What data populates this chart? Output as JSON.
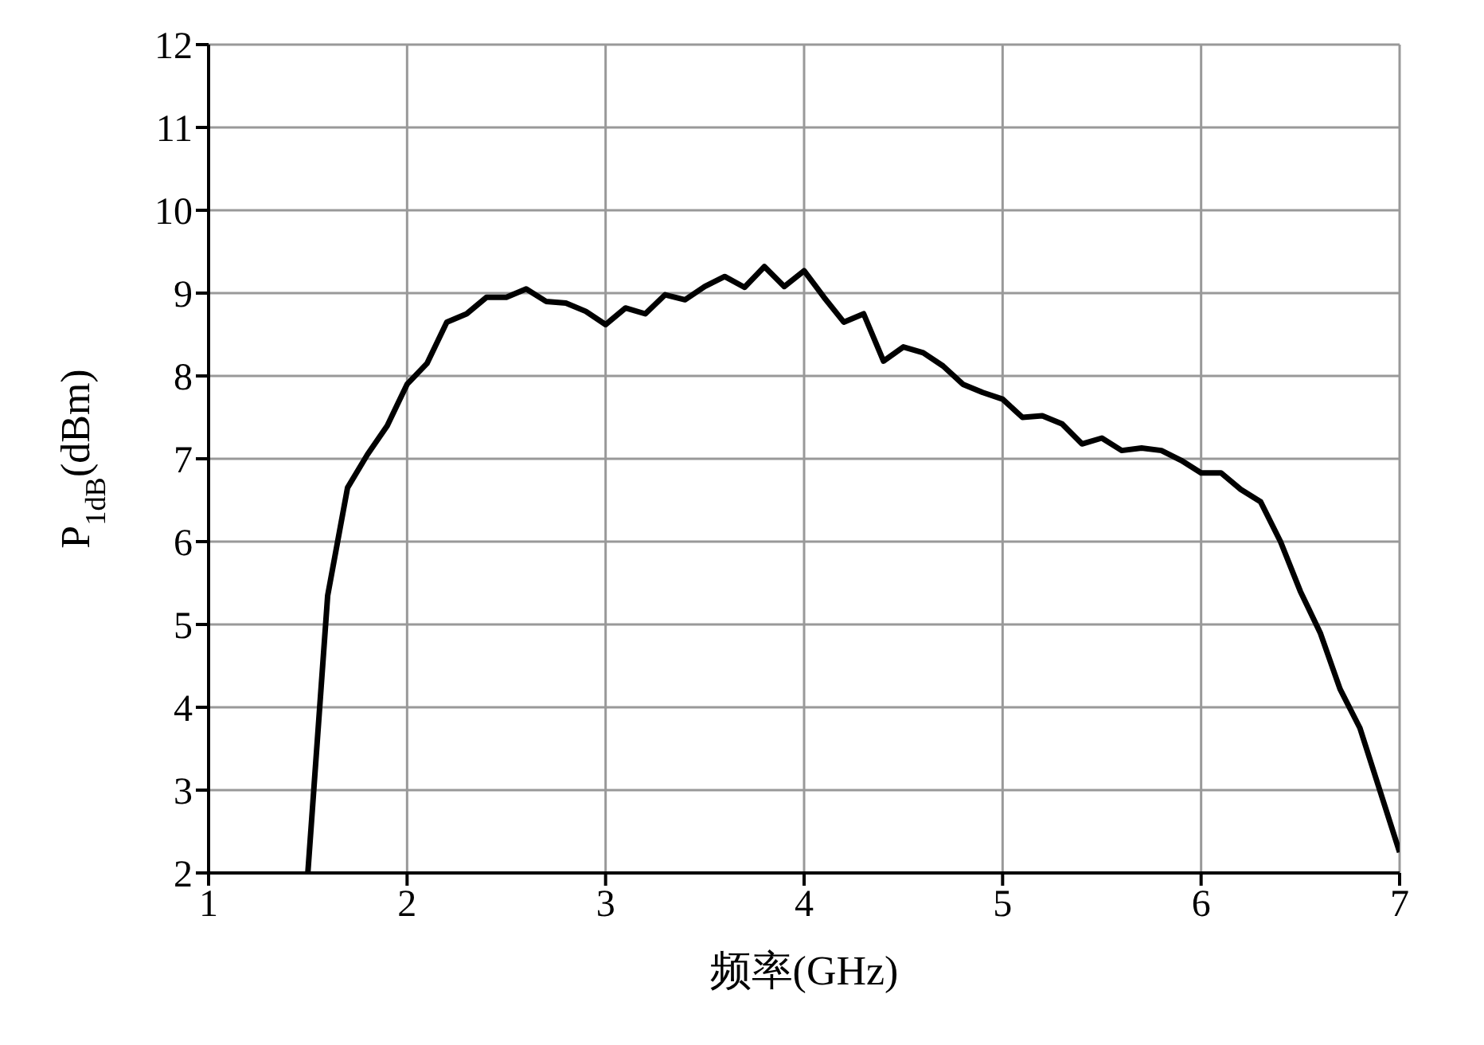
{
  "chart_data": {
    "type": "line",
    "xlabel": "频率(GHz)",
    "ylabel": "P$_{1dB}$(dBm)",
    "x": [
      1.5,
      1.6,
      1.7,
      1.8,
      1.9,
      2.0,
      2.1,
      2.2,
      2.3,
      2.4,
      2.5,
      2.6,
      2.7,
      2.8,
      2.9,
      3.0,
      3.1,
      3.2,
      3.3,
      3.4,
      3.5,
      3.6,
      3.7,
      3.8,
      3.9,
      4.0,
      4.1,
      4.2,
      4.3,
      4.4,
      4.5,
      4.6,
      4.7,
      4.8,
      4.9,
      5.0,
      5.1,
      5.2,
      5.3,
      5.4,
      5.5,
      5.6,
      5.7,
      5.8,
      5.9,
      6.0,
      6.1,
      6.2,
      6.3,
      6.4,
      6.5,
      6.6,
      6.7,
      6.8,
      6.9,
      7.0
    ],
    "series": [
      {
        "color": "#000000",
        "values": [
          2.0,
          5.35,
          6.65,
          7.05,
          7.4,
          7.9,
          8.15,
          8.65,
          8.75,
          8.95,
          8.95,
          9.05,
          8.9,
          8.88,
          8.78,
          8.62,
          8.82,
          8.75,
          8.98,
          8.92,
          9.08,
          9.2,
          9.07,
          9.32,
          9.08,
          9.27,
          8.95,
          8.65,
          8.75,
          8.18,
          8.35,
          8.28,
          8.12,
          7.9,
          7.8,
          7.72,
          7.5,
          7.52,
          7.42,
          7.18,
          7.25,
          7.1,
          7.13,
          7.1,
          6.98,
          6.83,
          6.83,
          6.63,
          6.48,
          6.0,
          5.4,
          4.9,
          4.22,
          3.75,
          3.0,
          2.25
        ]
      }
    ],
    "xlim": [
      1,
      7
    ],
    "xticks": [
      1,
      2,
      3,
      4,
      5,
      6,
      7
    ],
    "ylim": [
      2,
      12
    ],
    "yticks": [
      2,
      3,
      4,
      5,
      6,
      7,
      8,
      9,
      10,
      11,
      12
    ],
    "grid": true,
    "legend": false,
    "marker": "none",
    "line_style": "solid"
  }
}
